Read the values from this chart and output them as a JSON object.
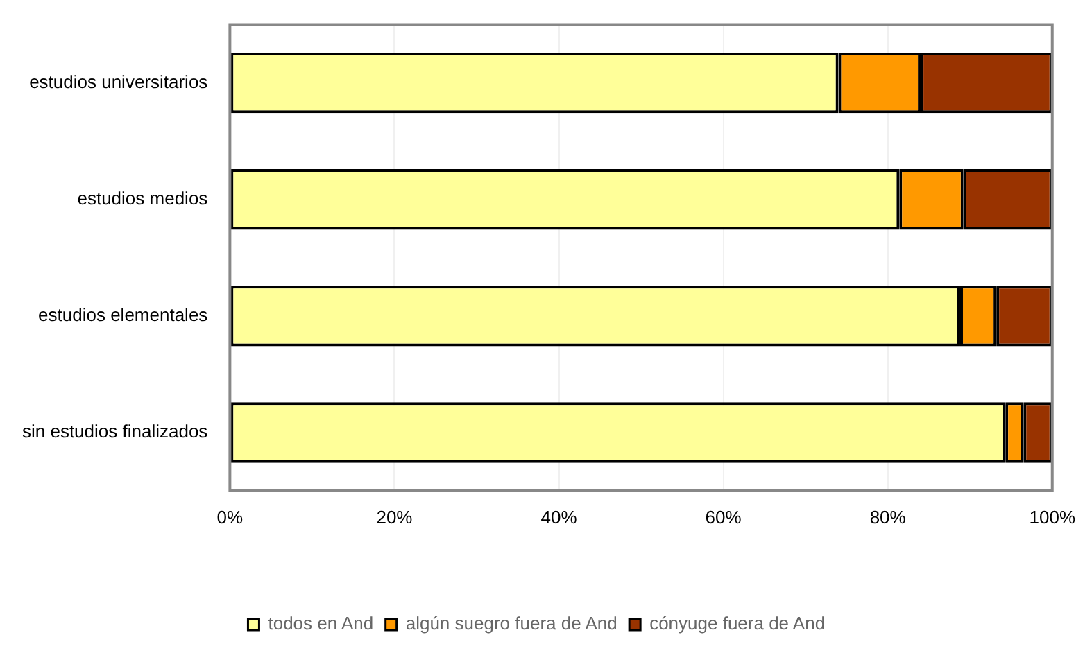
{
  "chart_data": {
    "type": "bar",
    "orientation": "horizontal",
    "stacked": true,
    "categories": [
      "estudios universitarios",
      "estudios medios",
      "estudios elementales",
      "sin estudios finalizados"
    ],
    "series": [
      {
        "name": "todos en And",
        "color": "#ffff99",
        "values": [
          74.0,
          81.4,
          88.8,
          94.3
        ]
      },
      {
        "name": "algún suegro fuera de And",
        "color": "#ff9900",
        "values": [
          10.0,
          7.8,
          4.4,
          2.2
        ]
      },
      {
        "name": "cónyuge fuera de And",
        "color": "#993300",
        "values": [
          16.0,
          10.8,
          6.8,
          3.5
        ]
      }
    ],
    "xlim": [
      0,
      100
    ],
    "xticks": [
      {
        "value": 0,
        "label": "0%"
      },
      {
        "value": 20,
        "label": "20%"
      },
      {
        "value": 40,
        "label": "40%"
      },
      {
        "value": 60,
        "label": "60%"
      },
      {
        "value": 80,
        "label": "80%"
      },
      {
        "value": 100,
        "label": "100%"
      }
    ],
    "grid": "x",
    "legend": "bottom"
  }
}
